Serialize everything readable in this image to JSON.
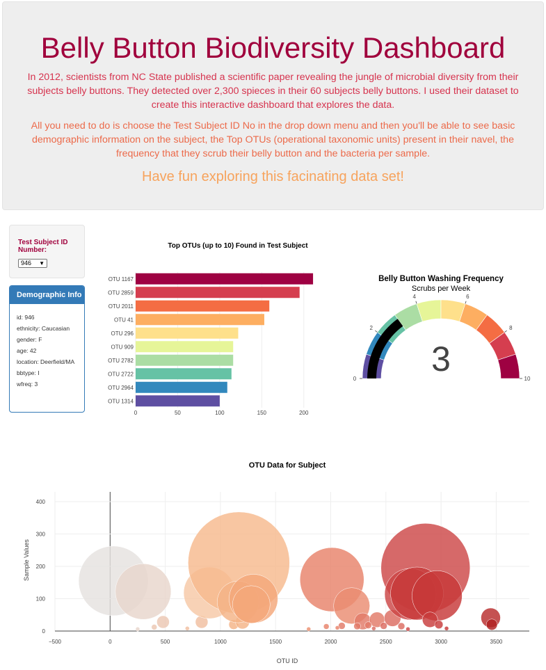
{
  "header": {
    "title": "Belly Button Biodiversity Dashboard",
    "paragraph1": "In 2012, scientists from NC State published a scientific paper revealing the jungle of microbial diversity from their subjects belly buttons. They detected over 2,300 spieces in their 60 subjects belly buttons. I used their dataset to create this interactive dashboard that explores the data.",
    "paragraph2": "All you need to do is choose the Test Subject ID No in the drop down menu and then you'll be able to see basic demographic information on the subject, the Top OTUs (operational taxonomic units) present in their navel, the frequency that they scrub their belly button and the bacteria per sample.",
    "paragraph3": "Have fun exploring this facinating data set!"
  },
  "selector": {
    "label": "Test Subject ID Number:",
    "selected": "946"
  },
  "demographics": {
    "heading": "Demographic Info",
    "lines": [
      "id: 946",
      "ethnicity: Caucasian",
      "gender: F",
      "age: 42",
      "location: Deerfield/MA",
      "bbtype: I",
      "wfreq: 3"
    ]
  },
  "chart_data": [
    {
      "type": "bar",
      "orientation": "horizontal",
      "title": "Top OTUs (up to 10) Found in Test Subject",
      "categories": [
        "OTU 1167",
        "OTU 2859",
        "OTU 2011",
        "OTU 41",
        "OTU 296",
        "OTU 909",
        "OTU 2782",
        "OTU 2722",
        "OTU 2964",
        "OTU 1314"
      ],
      "values": [
        211,
        195,
        159,
        153,
        122,
        116,
        116,
        114,
        109,
        100
      ],
      "colors": [
        "#9e0142",
        "#d53e4f",
        "#f46d43",
        "#fdae61",
        "#fee08b",
        "#e6f598",
        "#abdda4",
        "#66c2a5",
        "#3288bd",
        "#5e4fa2"
      ],
      "xlim": [
        0,
        225
      ],
      "xticks": [
        0,
        50,
        100,
        150,
        200
      ],
      "grid": true
    },
    {
      "type": "gauge",
      "title": "Belly Button Washing Frequency",
      "subtitle": "Scrubs per Week",
      "value": 3,
      "range": [
        0,
        10
      ],
      "ticks": [
        0,
        2,
        4,
        6,
        8,
        10
      ],
      "bands": [
        "#5e4fa2",
        "#3288bd",
        "#66c2a5",
        "#abdda4",
        "#e6f598",
        "#fee08b",
        "#fdae61",
        "#f46d43",
        "#d53e4f",
        "#9e0142"
      ],
      "bar_color": "#000000"
    },
    {
      "type": "scatter",
      "variant": "bubble",
      "title": "OTU Data for Subject",
      "xlabel": "OTU ID",
      "ylabel": "Sample Values",
      "xlim": [
        -500,
        3800
      ],
      "ylim": [
        0,
        430
      ],
      "xticks": [
        -500,
        0,
        500,
        1000,
        1500,
        2000,
        2500,
        3000,
        3500
      ],
      "yticks": [
        0,
        100,
        200,
        300,
        400
      ],
      "grid": true,
      "points": [
        {
          "x": 30,
          "y": 155,
          "r": 50,
          "color": "#e5e2df"
        },
        {
          "x": 300,
          "y": 122,
          "r": 40,
          "color": "#e8d6cc"
        },
        {
          "x": 480,
          "y": 28,
          "r": 9,
          "color": "#ecc7b2"
        },
        {
          "x": 400,
          "y": 12,
          "r": 4,
          "color": "#ecc7b2"
        },
        {
          "x": 830,
          "y": 28,
          "r": 9,
          "color": "#f0bea0"
        },
        {
          "x": 900,
          "y": 118,
          "r": 37,
          "color": "#f6c8a6"
        },
        {
          "x": 1167,
          "y": 211,
          "r": 73,
          "color": "#f6b98e"
        },
        {
          "x": 1120,
          "y": 20,
          "r": 7,
          "color": "#f4b386"
        },
        {
          "x": 1200,
          "y": 28,
          "r": 10,
          "color": "#f4b386"
        },
        {
          "x": 1160,
          "y": 90,
          "r": 30,
          "color": "#f4b386"
        },
        {
          "x": 1300,
          "y": 100,
          "r": 35,
          "color": "#f4a77a"
        },
        {
          "x": 1280,
          "y": 82,
          "r": 27,
          "color": "#f4a77a"
        },
        {
          "x": 2011,
          "y": 159,
          "r": 46,
          "color": "#e8826a"
        },
        {
          "x": 2190,
          "y": 78,
          "r": 26,
          "color": "#ea8c71"
        },
        {
          "x": 2290,
          "y": 30,
          "r": 12,
          "color": "#e27a68"
        },
        {
          "x": 2420,
          "y": 35,
          "r": 11,
          "color": "#e27a68"
        },
        {
          "x": 2560,
          "y": 40,
          "r": 12,
          "color": "#dc6b60"
        },
        {
          "x": 2859,
          "y": 195,
          "r": 64,
          "color": "#cd4848"
        },
        {
          "x": 2722,
          "y": 114,
          "r": 37,
          "color": "#cc4545"
        },
        {
          "x": 2782,
          "y": 116,
          "r": 38,
          "color": "#c73b3b"
        },
        {
          "x": 2964,
          "y": 109,
          "r": 36,
          "color": "#c73838"
        },
        {
          "x": 2900,
          "y": 35,
          "r": 11,
          "color": "#c83c3c"
        },
        {
          "x": 2980,
          "y": 20,
          "r": 6,
          "color": "#c83c3c"
        },
        {
          "x": 3450,
          "y": 41,
          "r": 14,
          "color": "#b82c2c"
        },
        {
          "x": 3460,
          "y": 20,
          "r": 8,
          "color": "#b01e1e"
        },
        {
          "x": 2100,
          "y": 16,
          "r": 5,
          "color": "#e27a68"
        },
        {
          "x": 2240,
          "y": 15,
          "r": 5,
          "color": "#e27a68"
        },
        {
          "x": 2340,
          "y": 18,
          "r": 5,
          "color": "#e27a68"
        },
        {
          "x": 2480,
          "y": 16,
          "r": 5,
          "color": "#dc6b60"
        },
        {
          "x": 2640,
          "y": 15,
          "r": 5,
          "color": "#dc6b60"
        },
        {
          "x": 1960,
          "y": 14,
          "r": 4,
          "color": "#e8826a"
        },
        {
          "x": 2060,
          "y": 10,
          "r": 3,
          "color": "#e8826a"
        },
        {
          "x": 700,
          "y": 8,
          "r": 3,
          "color": "#f0bea0"
        },
        {
          "x": 250,
          "y": 6,
          "r": 3,
          "color": "#e8d6cc"
        },
        {
          "x": 1800,
          "y": 6,
          "r": 3,
          "color": "#eb9070"
        },
        {
          "x": 2390,
          "y": 8,
          "r": 3,
          "color": "#dc6b60"
        },
        {
          "x": 2700,
          "y": 6,
          "r": 3,
          "color": "#cc4545"
        },
        {
          "x": 3050,
          "y": 8,
          "r": 3,
          "color": "#c73838"
        }
      ]
    }
  ]
}
